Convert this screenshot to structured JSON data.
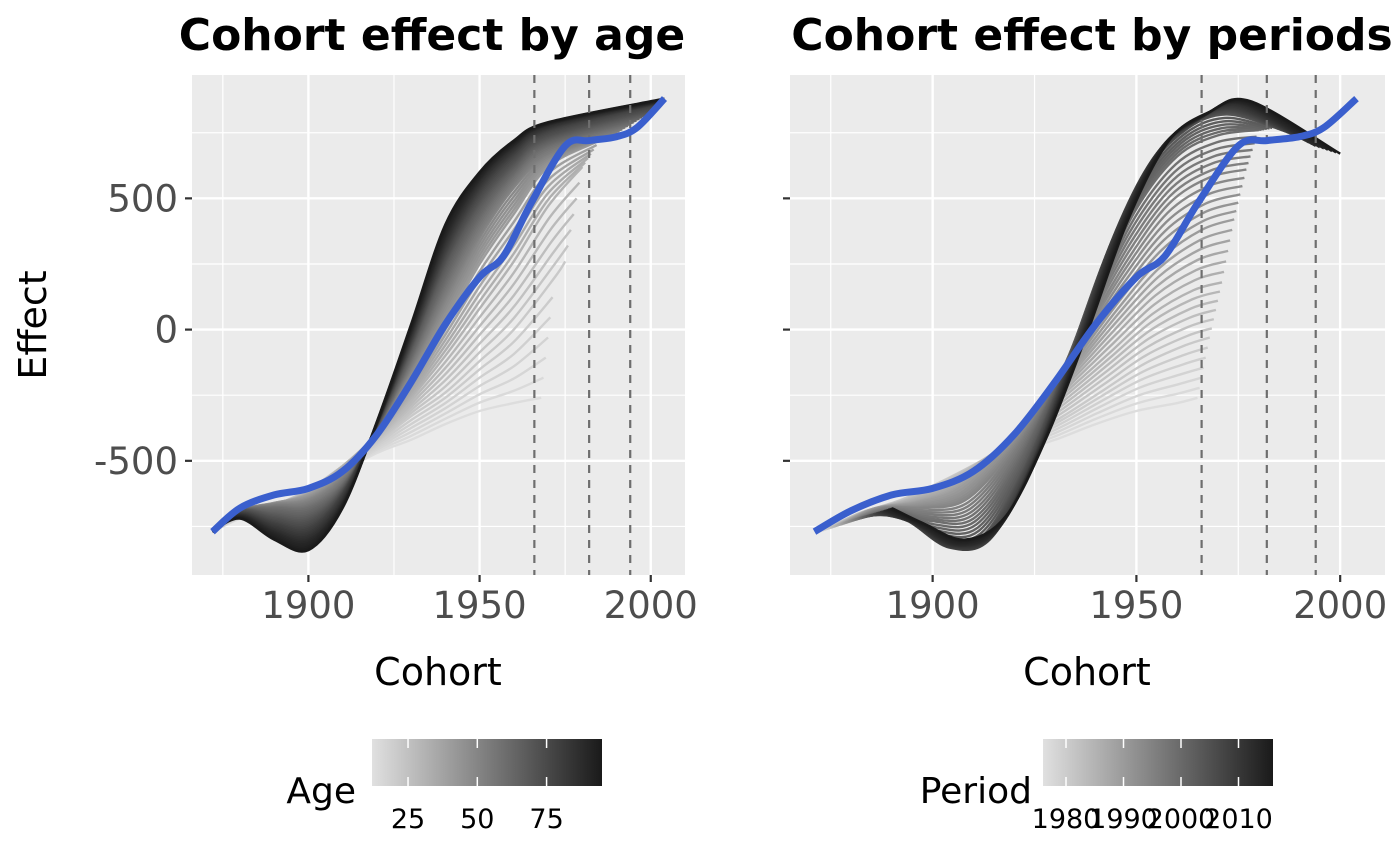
{
  "chart_data": [
    {
      "type": "line",
      "title": "Cohort effect by age",
      "xlabel": "Cohort",
      "ylabel": "Effect",
      "xlim": [
        1866,
        2010
      ],
      "ylim": [
        -935,
        970
      ],
      "x_ticks": [
        1900,
        1950,
        2000
      ],
      "y_ticks": [
        -500,
        0,
        500
      ],
      "vlines": [
        1966,
        1982,
        1994
      ],
      "series": [
        {
          "color": "#3A5FCD",
          "x": [
            1872,
            1880,
            1890,
            1900,
            1910,
            1920,
            1930,
            1940,
            1950,
            1957,
            1965,
            1975,
            1982,
            1990,
            1996,
            2004
          ],
          "y": [
            -770,
            -680,
            -630,
            -605,
            -540,
            -400,
            -200,
            20,
            200,
            280,
            480,
            700,
            720,
            735,
            770,
            880
          ]
        }
      ],
      "legend": {
        "title": "Age",
        "ticks": [
          "25",
          "50",
          "75"
        ],
        "range": [
          12,
          95
        ],
        "gradient_from": "#E0E0E0",
        "gradient_to": "#1A1A1A"
      },
      "grey_curves": {
        "colors": [
          "#DDDDDD",
          "#C9C9C9",
          "#B3B3B3",
          "#9C9C9C",
          "#858585",
          "#6E6E6E",
          "#575757",
          "#404040",
          "#2B2B2B",
          "#1A1A1A"
        ],
        "curves": [
          {
            "x": [
              1872,
              1880,
              1890,
              1900,
              1910,
              1920,
              1930,
              1940,
              1950,
              1960,
              1968
            ],
            "y": [
              -770,
              -720,
              -680,
              -610,
              -540,
              -470,
              -420,
              -360,
              -310,
              -280,
              -260
            ]
          },
          {
            "x": [
              1872,
              1880,
              1890,
              1900,
              1910,
              1920,
              1930,
              1940,
              1950,
              1960,
              1972,
              1975
            ],
            "y": [
              -770,
              -710,
              -670,
              -610,
              -520,
              -430,
              -330,
              -240,
              -120,
              0,
              200,
              260
            ]
          },
          {
            "x": [
              1872,
              1880,
              1890,
              1900,
              1910,
              1920,
              1930,
              1940,
              1950,
              1960,
              1970,
              1980
            ],
            "y": [
              -770,
              -700,
              -665,
              -620,
              -520,
              -400,
              -260,
              -100,
              80,
              260,
              470,
              620
            ]
          },
          {
            "x": [
              1872,
              1880,
              1890,
              1900,
              1910,
              1920,
              1930,
              1940,
              1950,
              1960,
              1970,
              1985
            ],
            "y": [
              -770,
              -690,
              -660,
              -630,
              -540,
              -390,
              -200,
              20,
              250,
              440,
              620,
              720
            ]
          },
          {
            "x": [
              1872,
              1880,
              1890,
              1900,
              1910,
              1920,
              1930,
              1940,
              1950,
              1960,
              1970,
              1990
            ],
            "y": [
              -770,
              -690,
              -665,
              -650,
              -560,
              -380,
              -150,
              110,
              350,
              540,
              660,
              750
            ]
          },
          {
            "x": [
              1872,
              1880,
              1890,
              1900,
              1910,
              1920,
              1930,
              1940,
              1950,
              1960,
              1970,
              1995
            ],
            "y": [
              -770,
              -690,
              -680,
              -680,
              -590,
              -380,
              -110,
              180,
              420,
              590,
              700,
              790
            ]
          },
          {
            "x": [
              1872,
              1880,
              1890,
              1900,
              1910,
              1920,
              1930,
              1940,
              1950,
              1960,
              1970,
              2000
            ],
            "y": [
              -770,
              -690,
              -710,
              -720,
              -610,
              -370,
              -70,
              250,
              480,
              630,
              730,
              830
            ]
          },
          {
            "x": [
              1872,
              1880,
              1890,
              1900,
              1910,
              1920,
              1930,
              1940,
              1950,
              1960,
              1970,
              2002
            ],
            "y": [
              -770,
              -700,
              -740,
              -760,
              -630,
              -360,
              -40,
              300,
              530,
              670,
              760,
              860
            ]
          },
          {
            "x": [
              1872,
              1880,
              1890,
              1900,
              1910,
              1920,
              1930,
              1940,
              1950,
              1960,
              1970,
              2003
            ],
            "y": [
              -770,
              -710,
              -770,
              -800,
              -660,
              -360,
              -10,
              350,
              570,
              700,
              780,
              870
            ]
          },
          {
            "x": [
              1872,
              1880,
              1890,
              1900,
              1910,
              1920,
              1930,
              1940,
              1950,
              1960,
              1970,
              2004
            ],
            "y": [
              -770,
              -720,
              -800,
              -840,
              -680,
              -350,
              20,
              400,
              600,
              720,
              790,
              880
            ]
          }
        ]
      }
    },
    {
      "type": "line",
      "title": "Cohort effect by periods",
      "xlabel": "Cohort",
      "ylabel": "",
      "xlim": [
        1865,
        2011
      ],
      "ylim": [
        -935,
        970
      ],
      "x_ticks": [
        1900,
        1950,
        2000
      ],
      "y_ticks": [
        -500,
        0,
        500
      ],
      "vlines": [
        1966,
        1982,
        1994
      ],
      "series": [
        {
          "color": "#3A5FCD",
          "x": [
            1871,
            1880,
            1890,
            1900,
            1910,
            1920,
            1930,
            1940,
            1950,
            1957,
            1965,
            1975,
            1982,
            1990,
            1996,
            2004
          ],
          "y": [
            -770,
            -690,
            -630,
            -605,
            -540,
            -400,
            -200,
            20,
            200,
            280,
            480,
            700,
            720,
            735,
            770,
            880
          ]
        }
      ],
      "legend": {
        "title": "Period",
        "ticks": [
          "1980",
          "1990",
          "2000",
          "2010"
        ],
        "range": [
          1976,
          2016
        ],
        "gradient_from": "#E0E0E0",
        "gradient_to": "#1A1A1A"
      },
      "grey_curves": {
        "colors": [
          "#DDDDDD",
          "#C9C9C9",
          "#B3B3B3",
          "#9C9C9C",
          "#858585",
          "#6E6E6E",
          "#575757",
          "#404040",
          "#2B2B2B",
          "#1A1A1A"
        ],
        "curves": [
          {
            "x": [
              1872,
              1880,
              1890,
              1900,
              1910,
              1920,
              1930,
              1940,
              1950,
              1960,
              1965
            ],
            "y": [
              -770,
              -720,
              -680,
              -610,
              -540,
              -470,
              -420,
              -360,
              -310,
              -280,
              -260
            ]
          },
          {
            "x": [
              1874,
              1882,
              1892,
              1902,
              1912,
              1922,
              1932,
              1942,
              1952,
              1962,
              1968
            ],
            "y": [
              -760,
              -700,
              -650,
              -580,
              -500,
              -420,
              -330,
              -230,
              -130,
              -60,
              -30
            ]
          },
          {
            "x": [
              1876,
              1884,
              1894,
              1904,
              1914,
              1924,
              1934,
              1944,
              1954,
              1964,
              1971
            ],
            "y": [
              -750,
              -690,
              -650,
              -590,
              -480,
              -360,
              -220,
              -80,
              60,
              150,
              180
            ]
          },
          {
            "x": [
              1878,
              1886,
              1896,
              1906,
              1916,
              1926,
              1936,
              1946,
              1956,
              1966,
              1974
            ],
            "y": [
              -740,
              -680,
              -660,
              -610,
              -470,
              -300,
              -110,
              90,
              270,
              380,
              420
            ]
          },
          {
            "x": [
              1880,
              1888,
              1898,
              1908,
              1918,
              1928,
              1938,
              1948,
              1958,
              1968,
              1977
            ],
            "y": [
              -730,
              -680,
              -680,
              -650,
              -490,
              -260,
              10,
              270,
              480,
              580,
              610
            ]
          },
          {
            "x": [
              1882,
              1890,
              1900,
              1910,
              1920,
              1930,
              1940,
              1950,
              1960,
              1970,
              1980
            ],
            "y": [
              -720,
              -690,
              -730,
              -720,
              -520,
              -220,
              140,
              460,
              660,
              740,
              760
            ]
          },
          {
            "x": [
              1884,
              1892,
              1902,
              1912,
              1922,
              1932,
              1942,
              1952,
              1962,
              1972,
              1984
            ],
            "y": [
              -710,
              -710,
              -800,
              -790,
              -540,
              -170,
              260,
              590,
              760,
              820,
              770
            ]
          },
          {
            "x": [
              1886,
              1894,
              1904,
              1914,
              1924,
              1934,
              1944,
              1954,
              1964,
              1974,
              1989
            ],
            "y": [
              -700,
              -730,
              -830,
              -800,
              -520,
              -110,
              340,
              650,
              790,
              840,
              740
            ]
          },
          {
            "x": [
              1888,
              1896,
              1906,
              1916,
              1926,
              1936,
              1946,
              1956,
              1966,
              1976,
              1994
            ],
            "y": [
              -690,
              -740,
              -820,
              -760,
              -470,
              -60,
              380,
              690,
              810,
              860,
              700
            ]
          },
          {
            "x": [
              1890,
              1898,
              1908,
              1918,
              1928,
              1938,
              1948,
              1958,
              1968,
              1978,
              2000
            ],
            "y": [
              -680,
              -740,
              -800,
              -710,
              -410,
              -10,
              420,
              720,
              830,
              870,
              670
            ]
          }
        ]
      }
    }
  ]
}
